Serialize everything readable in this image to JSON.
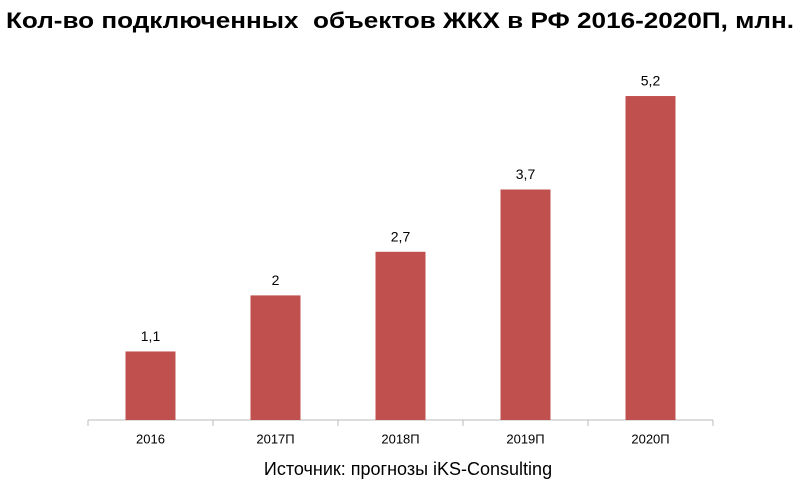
{
  "chart_data": {
    "type": "bar",
    "title": "Кол-во подключенных  объектов ЖКХ в РФ 2016-2020П, млн.",
    "categories": [
      "2016",
      "2017П",
      "2018П",
      "2019П",
      "2020П"
    ],
    "values": [
      1.1,
      2,
      2.7,
      3.7,
      5.2
    ],
    "value_labels": [
      "1,1",
      "2",
      "2,7",
      "3,7",
      "5,2"
    ],
    "color": "#c0504d",
    "source": "Источник: прогнозы iKS-Consulting"
  }
}
